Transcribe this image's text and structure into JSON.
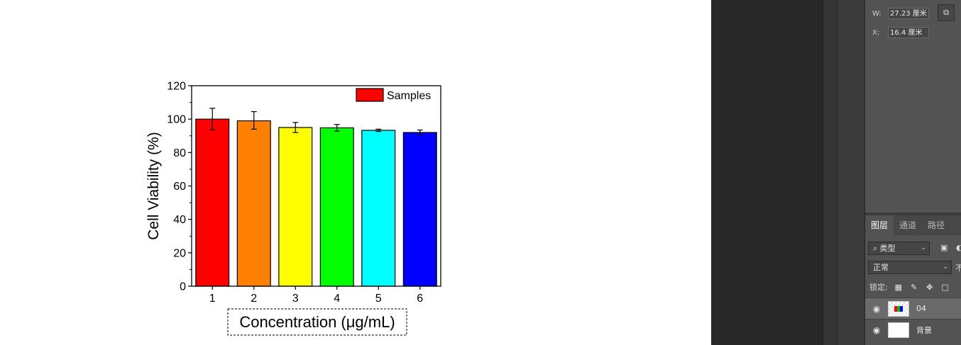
{
  "chart_data": {
    "type": "bar",
    "categories": [
      "1",
      "2",
      "3",
      "4",
      "5",
      "6"
    ],
    "series": [
      {
        "name": "Samples",
        "values": [
          100,
          99,
          95,
          94.8,
          93.3,
          92
        ],
        "error_low": [
          6.5,
          5,
          3,
          2,
          0.7,
          1.5
        ],
        "error_high": [
          6.5,
          5.5,
          3,
          2,
          0.7,
          1.5
        ],
        "colors": [
          "#ff0000",
          "#ff8000",
          "#ffff00",
          "#00ff00",
          "#00ffff",
          "#0000ff"
        ],
        "legend_color": "#ff0000"
      }
    ],
    "xlabel": "Concentration (μg/mL)",
    "ylabel": "Cell Viability (%)",
    "ylim": [
      0,
      120
    ],
    "yticks": [
      0,
      20,
      40,
      60,
      80,
      100,
      120
    ],
    "legend": "top-right",
    "grid": false
  },
  "properties": {
    "w_label": "W:",
    "w_value": "27.23 厘米",
    "x_label": "X:",
    "x_value": "16.4 厘米",
    "link_icon": "⧉"
  },
  "layers_panel": {
    "tabs": [
      {
        "label": "图层",
        "active": true
      },
      {
        "label": "通道",
        "active": false
      },
      {
        "label": "路径",
        "active": false
      }
    ],
    "filter_label": "⌕ 类型",
    "blend_mode": "正常",
    "opacity_clip": "不",
    "lock_label": "锁定:",
    "layers": [
      {
        "name": "04",
        "visible_icon": "👁",
        "selected": true
      },
      {
        "name": "背景",
        "visible_icon": "👁",
        "selected": false
      }
    ]
  }
}
